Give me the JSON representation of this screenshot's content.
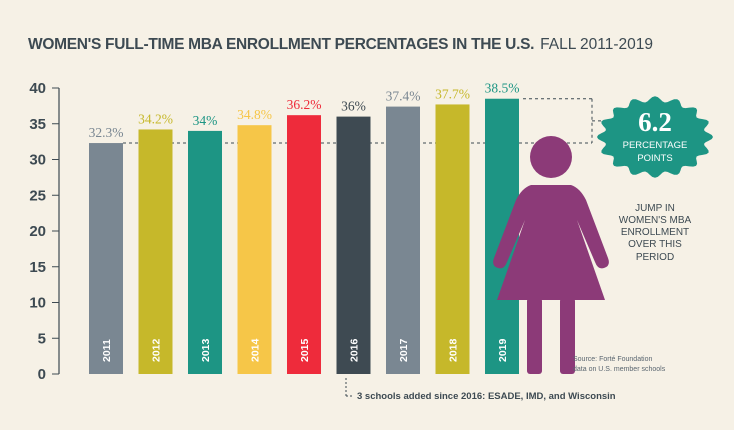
{
  "header": {
    "title": "WOMEN'S FULL-TIME MBA ENROLLMENT PERCENTAGES IN THE U.S.",
    "subtitle": "FALL 2011-2019"
  },
  "chart_data": {
    "type": "bar",
    "categories": [
      "2011",
      "2012",
      "2013",
      "2014",
      "2015",
      "2016",
      "2017",
      "2018",
      "2019"
    ],
    "values": [
      32.3,
      34.2,
      34,
      34.8,
      36.2,
      36,
      37.4,
      37.7,
      38.5
    ],
    "value_labels": [
      "32.3%",
      "34.2%",
      "34%",
      "34.8%",
      "36.2%",
      "36%",
      "37.4%",
      "37.7%",
      "38.5%"
    ],
    "bar_colors": [
      "#7a8792",
      "#c6b82a",
      "#1d9584",
      "#f6c648",
      "#ee2b3b",
      "#3e4a52",
      "#7a8792",
      "#c6b82a",
      "#1d9584"
    ],
    "label_colors": [
      "#7a8792",
      "#c6b82a",
      "#1d9584",
      "#f6c648",
      "#ee2b3b",
      "#3e4a52",
      "#7a8792",
      "#c6b82a",
      "#1d9584"
    ],
    "y_ticks": [
      "0",
      "5",
      "10",
      "15",
      "20",
      "25",
      "30",
      "35",
      "40"
    ],
    "ylim": [
      0,
      40
    ],
    "grid": false,
    "reference_lines": [
      32.3,
      38.5
    ]
  },
  "badge": {
    "value": "6.2",
    "line1": "PERCENTAGE",
    "line2": "POINTS",
    "color": "#1d9584"
  },
  "jump_text": [
    "JUMP IN",
    "WOMEN'S MBA",
    "ENROLLMENT",
    "OVER THIS",
    "PERIOD"
  ],
  "figure_icon": "woman-figure-icon",
  "figure_color": "#8c3a78",
  "source_text": [
    "Source: Forté Foundation",
    "data on U.S. member schools"
  ],
  "footnote": "3 schools added since 2016: ESADE, IMD, and Wisconsin"
}
